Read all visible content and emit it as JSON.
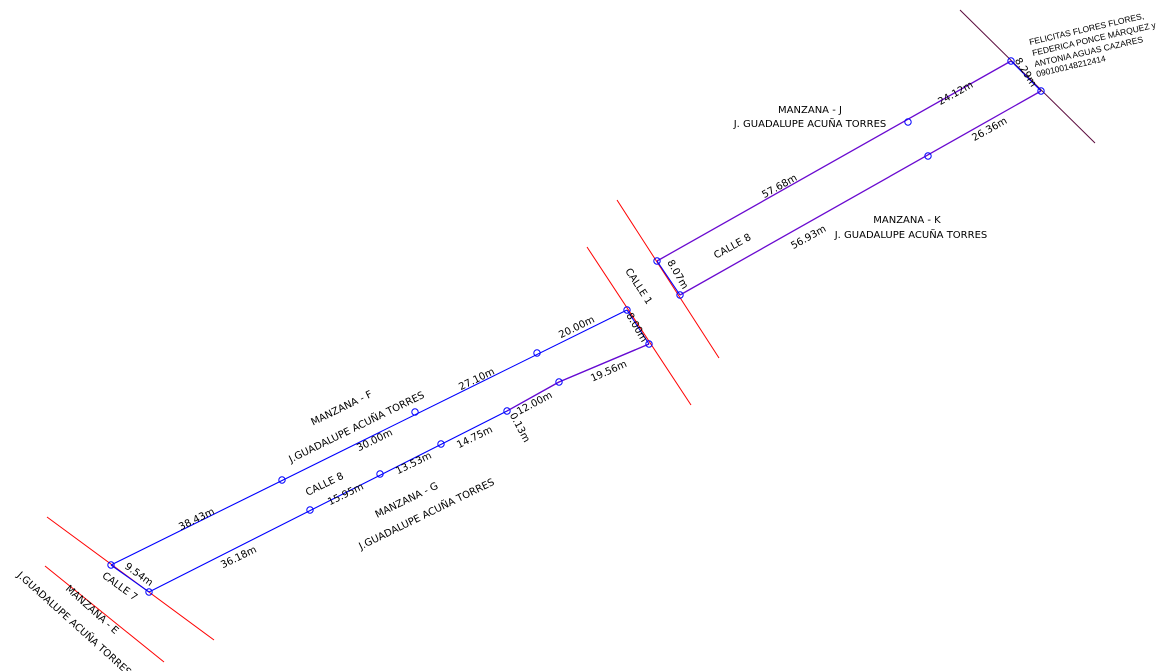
{
  "colors": {
    "boundary": "#0000ff",
    "street_axis": "#ff0000",
    "north_axis": "#5a0a3c",
    "block_edge": "#6a0ad0",
    "text": "#000000",
    "background": "#ffffff"
  },
  "blocks": {
    "manzana_j": {
      "title": "MANZANA - J",
      "owner": "J. GUADALUPE ACUÑA TORRES"
    },
    "manzana_k": {
      "title": "MANZANA - K",
      "owner": "J. GUADALUPE ACUÑA TORRES"
    },
    "manzana_f": {
      "title": "MANZANA - F",
      "owner": "J.GUADALUPE ACUÑA TORRES"
    },
    "manzana_g": {
      "title": "MANZANA - G",
      "owner": "J.GUADALUPE ACUÑA TORRES"
    },
    "manzana_e": {
      "title": "MANZANA - E",
      "owner": "J.GUADALUPE ACUÑA TORRES"
    }
  },
  "streets": {
    "calle_8_a": "CALLE 8",
    "calle_8_b": "CALLE 8",
    "calle_1": "CALLE 1",
    "calle_7": "CALLE 7"
  },
  "neighbor_owner": {
    "line1": "FELICITAS FLORES FLORES,",
    "line2": "FEDERICA PONCE MÁRQUEZ y",
    "line3": "ANTONIA AGUAS CAZARES",
    "line4": "090100148212414"
  },
  "dimensions": {
    "d_24_12": "24.12m",
    "d_8_29": "8.29m",
    "d_26_36": "26.36m",
    "d_57_68": "57.68m",
    "d_56_93": "56.93m",
    "d_8_07": "8.07m",
    "d_20_00": "20.00m",
    "d_8_00": "8.00m",
    "d_27_10": "27.10m",
    "d_19_56": "19.56m",
    "d_12_00": "12.00m",
    "d_0_13": "0.13m",
    "d_14_75": "14.75m",
    "d_13_53": "13.53m",
    "d_30_00": "30.00m",
    "d_15_95": "15.95m",
    "d_38_43": "38.43m",
    "d_36_18": "36.18m",
    "d_9_54": "9.54m"
  }
}
